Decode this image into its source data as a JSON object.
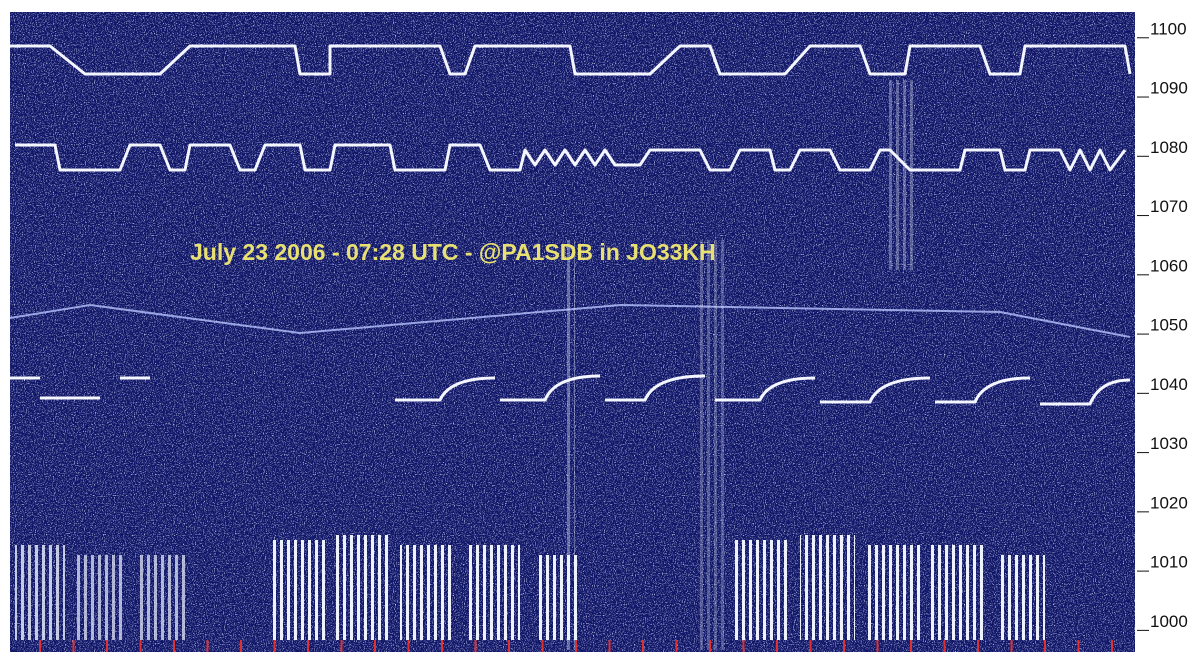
{
  "chart_data": {
    "type": "spectrogram",
    "annotation": "July 23 2006 - 07:28 UTC - @PA1SDB in JO33KH",
    "ylim": [
      995,
      1103
    ],
    "yticks": [
      1000,
      1010,
      1020,
      1030,
      1040,
      1050,
      1060,
      1070,
      1080,
      1090,
      1100
    ]
  }
}
